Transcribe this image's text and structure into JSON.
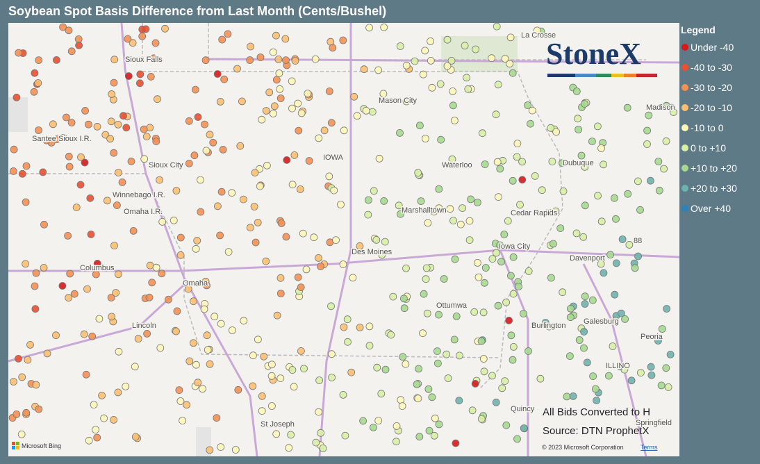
{
  "header": {
    "title": "Soybean Spot Basis Difference from Last Month (Cents/Bushel)"
  },
  "legend": {
    "title": "Legend",
    "items": [
      {
        "label": "Under -40",
        "color": "#d7191c"
      },
      {
        "label": "-40 to -30",
        "color": "#e8502f"
      },
      {
        "label": "-30 to -20",
        "color": "#f59053"
      },
      {
        "label": "-20 to -10",
        "color": "#fdbf6f"
      },
      {
        "label": "-10 to 0",
        "color": "#fef6b8"
      },
      {
        "label": "0 to +10",
        "color": "#d9efa6"
      },
      {
        "label": "+10 to +20",
        "color": "#a6d98f"
      },
      {
        "label": "+20 to +30",
        "color": "#6fb3ad"
      },
      {
        "label": "Over +40",
        "color": "#2b83ba"
      }
    ]
  },
  "logo": "StoneX",
  "map_labels": [
    "La Crosse",
    "Sioux Falls",
    "Mason City",
    "Madison",
    "IOWA",
    "Santee Sioux I.R.",
    "Waterloo",
    "Dubuque",
    "Sioux City",
    "Winnebago I.R.",
    "Omaha I.R.",
    "Marshalltown",
    "Cedar Rapids",
    "Des Moines",
    "Iowa City",
    "Davenport",
    "Columbus",
    "Omaha",
    "Ottumwa",
    "Burlington",
    "Galesburg",
    "Peoria",
    "ILLINO",
    "Lincoln",
    "St Joseph",
    "Quincy",
    "Springfield",
    "88"
  ],
  "notes": [
    "All Bids Converted to H",
    "Source: DTN ProphetX"
  ],
  "footer": {
    "attribution": "© 2023 Microsoft Corporation",
    "terms": "Terms",
    "bing": "Microsoft Bing"
  }
}
